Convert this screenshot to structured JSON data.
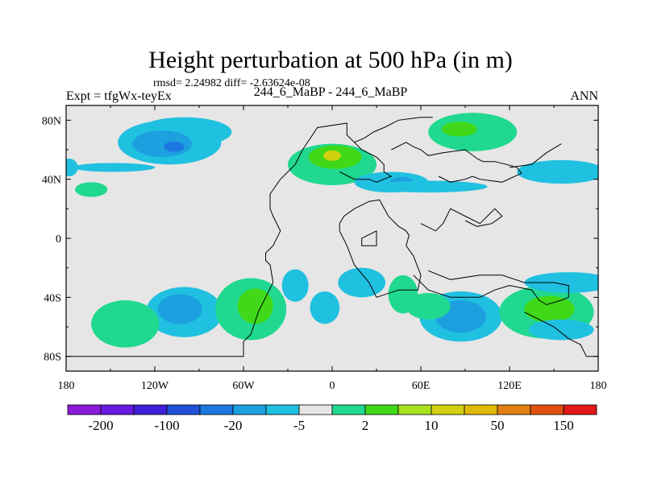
{
  "chart_data": {
    "type": "heatmap",
    "title": "Height perturbation at 500 hPa (in m)",
    "subtitle": "rmsd= 2.24982 diff= -2.63624e-08",
    "left_label": "Expt = tfgWx-teyEx",
    "center_label": "244_6_MaBP - 244_6_MaBP",
    "right_label": "ANN",
    "x_range": [
      -180,
      180
    ],
    "y_range": [
      -90,
      90
    ],
    "x_ticks": [
      {
        "value": -180,
        "label": "180"
      },
      {
        "value": -120,
        "label": "120W"
      },
      {
        "value": -60,
        "label": "60W"
      },
      {
        "value": 0,
        "label": "0"
      },
      {
        "value": 60,
        "label": "60E"
      },
      {
        "value": 120,
        "label": "120E"
      },
      {
        "value": 180,
        "label": "180"
      }
    ],
    "y_ticks": [
      {
        "value": 80,
        "label": "80N"
      },
      {
        "value": 40,
        "label": "40N"
      },
      {
        "value": 0,
        "label": "0"
      },
      {
        "value": -40,
        "label": "40S"
      },
      {
        "value": -80,
        "label": "80S"
      }
    ],
    "background_level": "2",
    "colorbar": {
      "colors": [
        "#8a1ad8",
        "#6a1ae0",
        "#4020d8",
        "#2050d8",
        "#1c78e0",
        "#1ca0e0",
        "#20c0e0",
        "#e6e6e6",
        "#20d890",
        "#40d818",
        "#a8e020",
        "#d0d010",
        "#e0b808",
        "#e08010",
        "#e05010",
        "#e01818"
      ],
      "labels": [
        {
          "boundary": 1,
          "text": "-200"
        },
        {
          "boundary": 3,
          "text": "-100"
        },
        {
          "boundary": 5,
          "text": "-20"
        },
        {
          "boundary": 7,
          "text": "-5"
        },
        {
          "boundary": 9,
          "text": "2"
        },
        {
          "boundary": 11,
          "text": "10"
        },
        {
          "boundary": 13,
          "text": "50"
        },
        {
          "boundary": 15,
          "text": "150"
        }
      ]
    },
    "features": [
      {
        "lon": -100,
        "lat": 72,
        "rlon": 32,
        "rlat": 10,
        "level": "-5"
      },
      {
        "lon": -110,
        "lat": 65,
        "rlon": 35,
        "rlat": 15,
        "level": "-5"
      },
      {
        "lon": -115,
        "lat": 64,
        "rlon": 20,
        "rlat": 9,
        "level": "-10"
      },
      {
        "lon": -107,
        "lat": 62,
        "rlon": 7,
        "rlat": 3.5,
        "level": "-20"
      },
      {
        "lon": 0,
        "lat": 50,
        "rlon": 30,
        "rlat": 14,
        "level": "5"
      },
      {
        "lon": 2,
        "lat": 55,
        "rlon": 18,
        "rlat": 8,
        "level": "10"
      },
      {
        "lon": 0,
        "lat": 56,
        "rlon": 6,
        "rlat": 3.5,
        "level": "30"
      },
      {
        "lon": 40,
        "lat": 38,
        "rlon": 25,
        "rlat": 7,
        "level": "-5"
      },
      {
        "lon": 47,
        "lat": 38,
        "rlon": 8,
        "rlat": 3.5,
        "level": "-10"
      },
      {
        "lon": 65,
        "lat": 35,
        "rlon": 40,
        "rlat": 4,
        "level": "-5"
      },
      {
        "lon": 95,
        "lat": 72,
        "rlon": 30,
        "rlat": 13,
        "level": "5"
      },
      {
        "lon": 86,
        "lat": 74,
        "rlon": 12,
        "rlat": 5,
        "level": "10"
      },
      {
        "lon": 155,
        "lat": 45,
        "rlon": 30,
        "rlat": 8,
        "level": "-5"
      },
      {
        "lon": -148,
        "lat": 48,
        "rlon": 28,
        "rlat": 3,
        "level": "-5"
      },
      {
        "lon": -163,
        "lat": 33,
        "rlon": 11,
        "rlat": 5,
        "level": "5"
      },
      {
        "lon": -178,
        "lat": 48,
        "rlon": 6,
        "rlat": 6,
        "level": "-5"
      },
      {
        "lon": -100,
        "lat": -50,
        "rlon": 26,
        "rlat": 17,
        "level": "-5"
      },
      {
        "lon": -103,
        "lat": -48,
        "rlon": 15,
        "rlat": 10,
        "level": "-10"
      },
      {
        "lon": -140,
        "lat": -58,
        "rlon": 23,
        "rlat": 16,
        "level": "5"
      },
      {
        "lon": -55,
        "lat": -48,
        "rlon": 24,
        "rlat": 21,
        "level": "5"
      },
      {
        "lon": -52,
        "lat": -46,
        "rlon": 12,
        "rlat": 12,
        "level": "10"
      },
      {
        "lon": -25,
        "lat": -32,
        "rlon": 9,
        "rlat": 11,
        "level": "-5"
      },
      {
        "lon": -5,
        "lat": -47,
        "rlon": 10,
        "rlat": 11,
        "level": "-5"
      },
      {
        "lon": 20,
        "lat": -30,
        "rlon": 16,
        "rlat": 10,
        "level": "-5"
      },
      {
        "lon": 48,
        "lat": -38,
        "rlon": 10,
        "rlat": 13,
        "level": "5"
      },
      {
        "lon": 87,
        "lat": -53,
        "rlon": 28,
        "rlat": 17,
        "level": "-5"
      },
      {
        "lon": 87,
        "lat": -53,
        "rlon": 17,
        "rlat": 11,
        "level": "-10"
      },
      {
        "lon": 65,
        "lat": -46,
        "rlon": 15,
        "rlat": 9,
        "level": "5"
      },
      {
        "lon": 145,
        "lat": -50,
        "rlon": 32,
        "rlat": 18,
        "level": "5"
      },
      {
        "lon": 147,
        "lat": -48,
        "rlon": 17,
        "rlat": 9,
        "level": "10"
      },
      {
        "lon": 160,
        "lat": -30,
        "rlon": 30,
        "rlat": 7,
        "level": "-5"
      },
      {
        "lon": 155,
        "lat": -62,
        "rlon": 22,
        "rlat": 7,
        "level": "-5"
      }
    ],
    "coastlines": [
      [
        [
          -180,
          -80
        ],
        [
          -60,
          -80
        ],
        [
          -60,
          -70
        ],
        [
          -55,
          -65
        ],
        [
          -50,
          -50
        ],
        [
          -45,
          -40
        ],
        [
          -40,
          -30
        ],
        [
          -42,
          -18
        ],
        [
          -45,
          -15
        ],
        [
          -45,
          -10
        ],
        [
          -40,
          -5
        ],
        [
          -35,
          5
        ],
        [
          -40,
          15
        ],
        [
          -42,
          20
        ],
        [
          -42,
          30
        ],
        [
          -35,
          40
        ],
        [
          -25,
          50
        ],
        [
          -20,
          60
        ],
        [
          -10,
          75
        ],
        [
          10,
          78
        ],
        [
          10,
          70
        ],
        [
          20,
          60
        ],
        [
          30,
          55
        ],
        [
          35,
          50
        ],
        [
          35,
          45
        ],
        [
          40,
          42
        ],
        [
          30,
          38
        ],
        [
          25,
          40
        ],
        [
          15,
          40
        ],
        [
          5,
          45
        ]
      ],
      [
        [
          15,
          65
        ],
        [
          22,
          68
        ],
        [
          28,
          72
        ],
        [
          35,
          75
        ],
        [
          45,
          80
        ],
        [
          60,
          82
        ],
        [
          68,
          82
        ]
      ],
      [
        [
          40,
          60
        ],
        [
          50,
          65
        ],
        [
          55,
          62
        ],
        [
          60,
          60
        ],
        [
          65,
          56
        ],
        [
          75,
          58
        ],
        [
          90,
          60
        ],
        [
          98,
          54
        ],
        [
          102,
          52
        ],
        [
          110,
          52
        ],
        [
          118,
          50
        ],
        [
          125,
          48
        ],
        [
          128,
          44
        ],
        [
          115,
          38
        ],
        [
          100,
          40
        ],
        [
          95,
          42
        ],
        [
          90,
          40
        ],
        [
          80,
          38
        ],
        [
          72,
          42
        ]
      ],
      [
        [
          120,
          48
        ],
        [
          135,
          50
        ],
        [
          145,
          58
        ],
        [
          155,
          64
        ]
      ],
      [
        [
          5,
          10
        ],
        [
          8,
          15
        ],
        [
          15,
          20
        ],
        [
          25,
          25
        ],
        [
          32,
          26
        ],
        [
          38,
          15
        ],
        [
          45,
          8
        ],
        [
          50,
          5
        ],
        [
          52,
          2
        ],
        [
          50,
          -5
        ],
        [
          55,
          -12
        ],
        [
          60,
          -25
        ],
        [
          58,
          -35
        ],
        [
          45,
          -35
        ],
        [
          30,
          -40
        ],
        [
          25,
          -30
        ],
        [
          15,
          -18
        ],
        [
          10,
          -5
        ],
        [
          5,
          5
        ],
        [
          5,
          10
        ]
      ],
      [
        [
          30,
          5
        ],
        [
          20,
          0
        ],
        [
          20,
          -5
        ],
        [
          30,
          -5
        ],
        [
          30,
          5
        ]
      ],
      [
        [
          60,
          10
        ],
        [
          70,
          5
        ],
        [
          75,
          10
        ],
        [
          80,
          20
        ],
        [
          90,
          15
        ],
        [
          100,
          10
        ],
        [
          105,
          15
        ],
        [
          110,
          20
        ],
        [
          115,
          15
        ],
        [
          108,
          10
        ],
        [
          98,
          8
        ],
        [
          90,
          12
        ]
      ],
      [
        [
          55,
          -25
        ],
        [
          65,
          -35
        ],
        [
          80,
          -40
        ],
        [
          100,
          -40
        ],
        [
          110,
          -35
        ],
        [
          120,
          -32
        ],
        [
          135,
          -35
        ],
        [
          140,
          -42
        ],
        [
          145,
          -45
        ],
        [
          155,
          -42
        ],
        [
          160,
          -40
        ],
        [
          160,
          -32
        ],
        [
          150,
          -30
        ],
        [
          140,
          -30
        ],
        [
          130,
          -30
        ],
        [
          115,
          -25
        ],
        [
          100,
          -25
        ],
        [
          80,
          -28
        ],
        [
          65,
          -22
        ]
      ],
      [
        [
          130,
          -50
        ],
        [
          140,
          -55
        ],
        [
          150,
          -60
        ],
        [
          160,
          -68
        ],
        [
          168,
          -72
        ],
        [
          172,
          -80
        ],
        [
          180,
          -80
        ]
      ]
    ]
  }
}
